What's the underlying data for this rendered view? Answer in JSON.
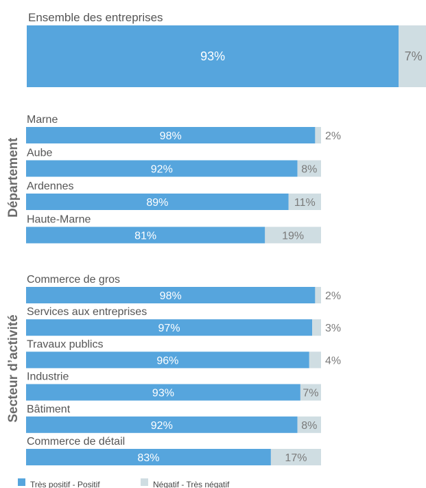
{
  "chart_data": {
    "type": "bar",
    "stacked": true,
    "orientation": "horizontal",
    "colors": {
      "positive": "#56a5dd",
      "negative": "#cfdde2"
    },
    "total": {
      "label": "Ensemble des entreprises",
      "positive": 93,
      "negative": 7,
      "positive_label": "93%",
      "negative_label": "7%"
    },
    "groups": [
      {
        "title": "Département",
        "rows": [
          {
            "label": "Marne",
            "positive": 98,
            "negative": 2,
            "positive_label": "98%",
            "negative_label": "2%"
          },
          {
            "label": "Aube",
            "positive": 92,
            "negative": 8,
            "positive_label": "92%",
            "negative_label": "8%"
          },
          {
            "label": "Ardennes",
            "positive": 89,
            "negative": 11,
            "positive_label": "89%",
            "negative_label": "11%"
          },
          {
            "label": "Haute-Marne",
            "positive": 81,
            "negative": 19,
            "positive_label": "81%",
            "negative_label": "19%"
          }
        ]
      },
      {
        "title": "Secteur d’activité",
        "rows": [
          {
            "label": "Commerce de gros",
            "positive": 98,
            "negative": 2,
            "positive_label": "98%",
            "negative_label": "2%"
          },
          {
            "label": "Services aux entreprises",
            "positive": 97,
            "negative": 3,
            "positive_label": "97%",
            "negative_label": "3%"
          },
          {
            "label": "Travaux publics",
            "positive": 96,
            "negative": 4,
            "positive_label": "96%",
            "negative_label": "4%"
          },
          {
            "label": "Industrie",
            "positive": 93,
            "negative": 7,
            "positive_label": "93%",
            "negative_label": "7%"
          },
          {
            "label": "Bâtiment",
            "positive": 92,
            "negative": 8,
            "positive_label": "92%",
            "negative_label": "8%"
          },
          {
            "label": "Commerce de détail",
            "positive": 83,
            "negative": 17,
            "positive_label": "83%",
            "negative_label": "17%"
          }
        ]
      }
    ],
    "legend": [
      {
        "key": "positive",
        "label": "Très positif - Positif"
      },
      {
        "key": "negative",
        "label": "Négatif - Très négatif"
      }
    ]
  }
}
